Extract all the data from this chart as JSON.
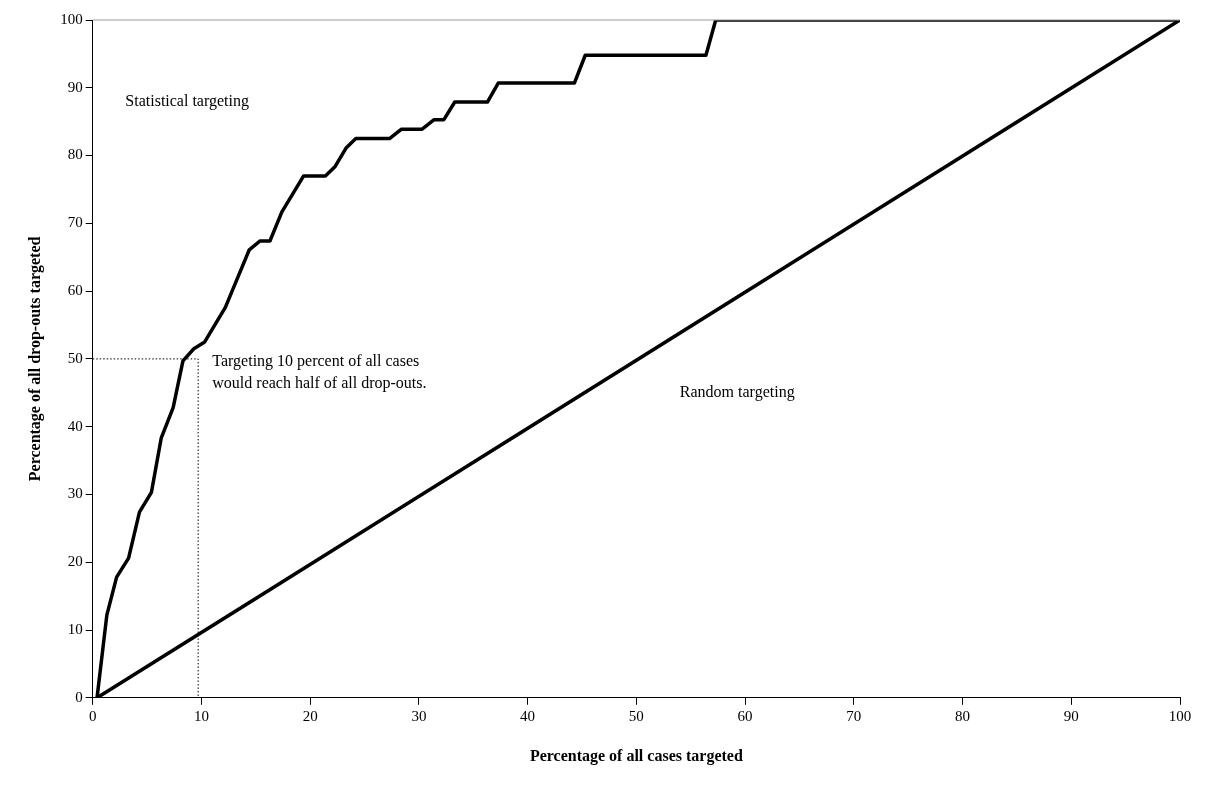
{
  "chart_data": {
    "type": "line",
    "xlabel": "Percentage of all cases targeted",
    "ylabel": "Percentage of all drop-outs targeted",
    "xlim": [
      0,
      100
    ],
    "xticks": [
      0,
      10,
      20,
      30,
      40,
      50,
      60,
      70,
      80,
      90,
      100
    ],
    "ylim": [
      0,
      100
    ],
    "yticks": [
      0,
      10,
      20,
      30,
      40,
      50,
      60,
      70,
      80,
      90,
      100
    ],
    "grid": false,
    "legend": false,
    "marker": "none",
    "series": [
      {
        "color": "#000000",
        "line_style": "solid",
        "x": [
          0.4,
          1.3,
          2.2,
          3.3,
          4.3,
          5.4,
          6.3,
          7.4,
          8.3,
          9.3,
          10.3,
          12.2,
          14.4,
          15.4,
          16.3,
          17.4,
          19.4,
          21.4,
          22.3,
          23.3,
          24.2,
          27.3,
          28.4,
          30.3,
          31.4,
          32.3,
          33.3,
          36.3,
          37.3,
          44.3,
          45.3,
          56.4,
          57.3,
          100
        ],
        "values": [
          0,
          12.2,
          17.8,
          20.6,
          27.4,
          30.3,
          38.3,
          42.8,
          49.7,
          51.5,
          52.5,
          57.6,
          66.1,
          67.4,
          67.4,
          71.7,
          77,
          77,
          78.4,
          81.1,
          82.5,
          82.5,
          83.9,
          83.9,
          85.3,
          85.3,
          87.9,
          87.9,
          90.7,
          90.7,
          94.8,
          94.8,
          100,
          100
        ]
      },
      {
        "color": "#000000",
        "line_style": "solid",
        "x": [
          0.4,
          100
        ],
        "values": [
          0,
          100
        ]
      },
      {
        "color": "#000000",
        "line_style": "dotted",
        "x": [
          0,
          9.7,
          9.7
        ],
        "values": [
          50,
          50,
          0
        ]
      }
    ],
    "annotations": [
      "Statistical targeting",
      "Targeting 10 percent of all cases would reach half of all drop-outs.",
      "Random targeting"
    ]
  }
}
